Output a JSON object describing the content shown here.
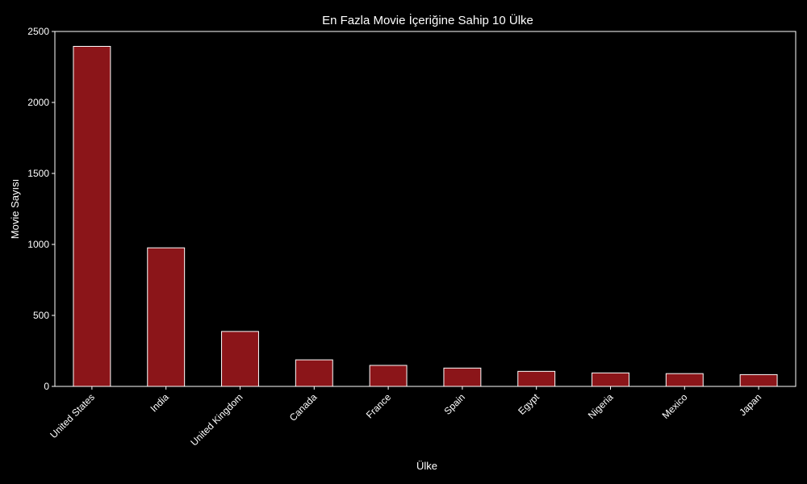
{
  "colors": {
    "background": "#000000",
    "bar_fill": "#8b1519",
    "bar_edge": "#ffffff",
    "text": "#ffffff",
    "axis": "#ffffff"
  },
  "chart_data": {
    "type": "bar",
    "title": "En Fazla Movie İçeriğine Sahip 10 Ülke",
    "xlabel": "Ülke",
    "ylabel": "Movie Sayısı",
    "categories": [
      "United States",
      "India",
      "United Kingdom",
      "Canada",
      "France",
      "Spain",
      "Egypt",
      "Nigeria",
      "Mexico",
      "Japan"
    ],
    "values": [
      2395,
      976,
      387,
      187,
      148,
      129,
      106,
      95,
      90,
      83
    ],
    "ylim": [
      0,
      2500
    ],
    "yticks": [
      0,
      500,
      1000,
      1500,
      2000,
      2500
    ],
    "grid": false,
    "legend": "none"
  }
}
